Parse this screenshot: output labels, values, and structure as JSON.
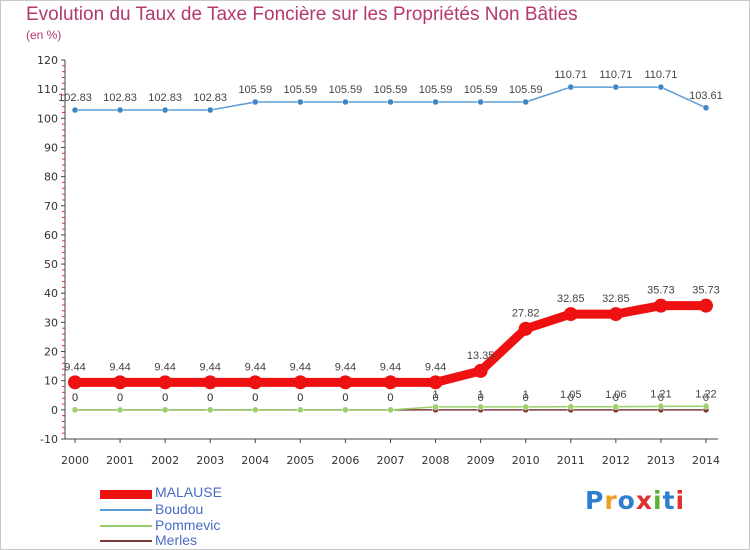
{
  "title": "Evolution du Taux de Taxe Foncière sur les Propriétés Non Bâties",
  "subtitle": "(en %)",
  "logo": {
    "text": "Proxiti",
    "letters": [
      "P",
      "r",
      "o",
      "x",
      "i",
      "t",
      "i"
    ],
    "colors": [
      "#2f7fd0",
      "#f0a020",
      "#2f7fd0",
      "#e03030",
      "#60b030",
      "#2f7fd0",
      "#e03030"
    ]
  },
  "chart_data": {
    "type": "line",
    "title": "Evolution du Taux de Taxe Foncière sur les Propriétés Non Bâties",
    "ylabel": "(en %)",
    "xlabel": "",
    "ylim": [
      -10,
      120
    ],
    "yticks": [
      -10,
      0,
      10,
      20,
      30,
      40,
      50,
      60,
      70,
      80,
      90,
      100,
      110,
      120
    ],
    "categories": [
      "2000",
      "2001",
      "2002",
      "2003",
      "2004",
      "2005",
      "2006",
      "2007",
      "2008",
      "2009",
      "2010",
      "2011",
      "2012",
      "2013",
      "2014"
    ],
    "grid": false,
    "legend_position": "bottom-left",
    "series": [
      {
        "name": "MALAUSE",
        "color": "#ee1111",
        "emphasis": true,
        "values": [
          9.44,
          9.44,
          9.44,
          9.44,
          9.44,
          9.44,
          9.44,
          9.44,
          9.44,
          13.35,
          27.82,
          32.85,
          32.85,
          35.73,
          35.73
        ],
        "labels": [
          "9.44",
          "9.44",
          "9.44",
          "9.44",
          "9.44",
          "9.44",
          "9.44",
          "9.44",
          "9.44",
          "13.35",
          "27.82",
          "32.85",
          "32.85",
          "35.73",
          "35.73"
        ]
      },
      {
        "name": "Boudou",
        "color": "#5b9bd5",
        "emphasis": false,
        "values": [
          102.83,
          102.83,
          102.83,
          102.83,
          105.59,
          105.59,
          105.59,
          105.59,
          105.59,
          105.59,
          105.59,
          110.71,
          110.71,
          110.71,
          103.61
        ],
        "labels": [
          "102.83",
          "102.83",
          "102.83",
          "102.83",
          "105.59",
          "105.59",
          "105.59",
          "105.59",
          "105.59",
          "105.59",
          "105.59",
          "110.71",
          "110.71",
          "110.71",
          "103.61"
        ]
      },
      {
        "name": "Pommevic",
        "color": "#9ad06a",
        "emphasis": false,
        "values": [
          0,
          0,
          0,
          0,
          0,
          0,
          0,
          0,
          1,
          1,
          1,
          1.05,
          1.06,
          1.21,
          1.22
        ],
        "labels": [
          "0",
          "0",
          "0",
          "0",
          "0",
          "0",
          "0",
          "0",
          "1",
          "1",
          "1",
          "1.05",
          "1.06",
          "1.21",
          "1.22"
        ]
      },
      {
        "name": "Merles",
        "color": "#7a3a3a",
        "emphasis": false,
        "values": [
          0,
          0,
          0,
          0,
          0,
          0,
          0,
          0,
          0,
          0,
          0,
          0,
          0,
          0,
          0
        ],
        "labels": [
          "0",
          "0",
          "0",
          "0",
          "0",
          "0",
          "0",
          "0",
          "0",
          "0",
          "0",
          "0",
          "0",
          "0",
          "0"
        ]
      }
    ]
  }
}
